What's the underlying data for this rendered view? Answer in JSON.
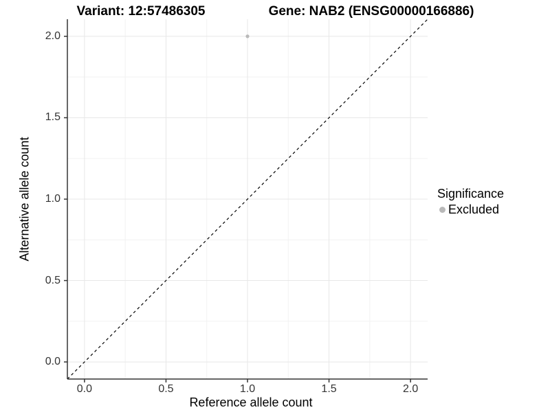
{
  "figure": {
    "titles": {
      "variant": "Variant: 12:57486305",
      "gene": "Gene: NAB2 (ENSG00000166886)"
    }
  },
  "legend": {
    "title": "Significance",
    "items": [
      {
        "label": "Excluded",
        "color": "#b9b9b9"
      }
    ]
  },
  "chart_data": {
    "type": "scatter",
    "title": "Variant: 12:57486305   Gene: NAB2 (ENSG00000166886)",
    "xlabel": "Reference allele count",
    "ylabel": "Alternative allele count",
    "xlim": [
      -0.105,
      2.105
    ],
    "ylim": [
      -0.105,
      2.105
    ],
    "x_ticks": [
      0.0,
      0.5,
      1.0,
      1.5,
      2.0
    ],
    "y_ticks": [
      0.0,
      0.5,
      1.0,
      1.5,
      2.0
    ],
    "x_minor_ticks": [
      0.25,
      0.75,
      1.25,
      1.75
    ],
    "y_minor_ticks": [
      0.25,
      0.75,
      1.25,
      1.75
    ],
    "grid": true,
    "legend_position": "right",
    "series": [
      {
        "name": "Excluded",
        "color": "#b9b9b9",
        "points": [
          {
            "x": 1.0,
            "y": 2.0
          }
        ]
      }
    ],
    "reference_line": {
      "type": "identity",
      "from": [
        0,
        0
      ],
      "to": [
        2,
        2
      ],
      "style": "dashed",
      "color": "#000000"
    },
    "colors": {
      "grid_major": "#e7e7e7",
      "grid_minor": "#f2f2f2",
      "axis_line": "#333333",
      "tick_label": "#333333",
      "point": "#b9b9b9"
    }
  }
}
